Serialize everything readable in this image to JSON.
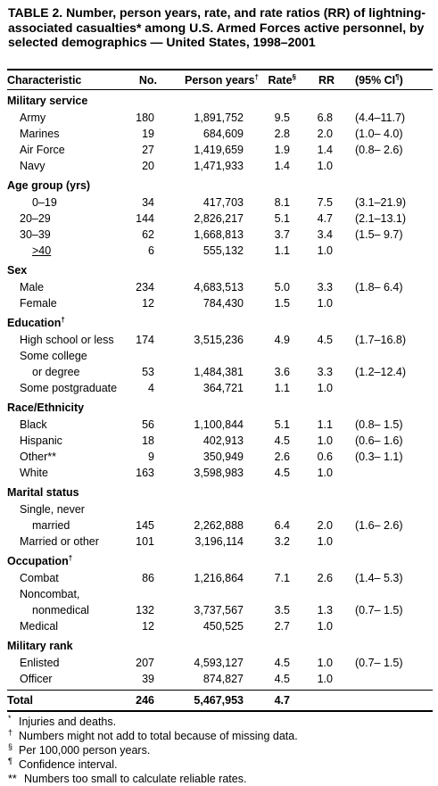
{
  "title": "TABLE 2. Number, person years, rate, and rate ratios (RR) of lightning-associated casualties* among U.S. Armed Forces active personnel, by selected demographics — United States, 1998–2001",
  "header": {
    "characteristic": "Characteristic",
    "no": "No.",
    "person_years": "Person years",
    "person_years_mark": "†",
    "rate": "Rate",
    "rate_mark": "§",
    "rr": "RR",
    "ci": "(95% CI",
    "ci_mark": "¶",
    "ci_close": ")"
  },
  "rows": [
    {
      "type": "section",
      "label": "Military service"
    },
    {
      "type": "item",
      "label": "Army",
      "no": "180",
      "py": "1,891,752",
      "rate": "9.5",
      "rr": "6.8",
      "ci": "(4.4–11.7)"
    },
    {
      "type": "item",
      "label": "Marines",
      "no": "19",
      "py": "684,609",
      "rate": "2.8",
      "rr": "2.0",
      "ci": "(1.0– 4.0)"
    },
    {
      "type": "item",
      "label": "Air Force",
      "no": "27",
      "py": "1,419,659",
      "rate": "1.9",
      "rr": "1.4",
      "ci": "(0.8– 2.6)"
    },
    {
      "type": "item",
      "label": "Navy",
      "no": "20",
      "py": "1,471,933",
      "rate": "1.4",
      "rr": "1.0",
      "ci": ""
    },
    {
      "type": "section",
      "label": "Age group (yrs)"
    },
    {
      "type": "item",
      "level": 2,
      "label": "0–19",
      "no": "34",
      "py": "417,703",
      "rate": "8.1",
      "rr": "7.5",
      "ci": "(3.1–21.9)"
    },
    {
      "type": "item",
      "label": "20–29",
      "no": "144",
      "py": "2,826,217",
      "rate": "5.1",
      "rr": "4.7",
      "ci": "(2.1–13.1)"
    },
    {
      "type": "item",
      "label": "30–39",
      "no": "62",
      "py": "1,668,813",
      "rate": "3.7",
      "rr": "3.4",
      "ci": "(1.5– 9.7)"
    },
    {
      "type": "item",
      "level": 2,
      "label": ">40",
      "no": "6",
      "py": "555,132",
      "rate": "1.1",
      "rr": "1.0",
      "ci": "",
      "underline": true
    },
    {
      "type": "section",
      "label": "Sex"
    },
    {
      "type": "item",
      "label": "Male",
      "no": "234",
      "py": "4,683,513",
      "rate": "5.0",
      "rr": "3.3",
      "ci": "(1.8– 6.4)"
    },
    {
      "type": "item",
      "label": "Female",
      "no": "12",
      "py": "784,430",
      "rate": "1.5",
      "rr": "1.0",
      "ci": ""
    },
    {
      "type": "section",
      "label": "Education",
      "mark": "†"
    },
    {
      "type": "item",
      "label": "High school or less",
      "no": "174",
      "py": "3,515,236",
      "rate": "4.9",
      "rr": "4.5",
      "ci": "(1.7–16.8)"
    },
    {
      "type": "item",
      "label": "Some college",
      "no": "",
      "py": "",
      "rate": "",
      "rr": "",
      "ci": ""
    },
    {
      "type": "item",
      "level": 2,
      "label": "or degree",
      "no": "53",
      "py": "1,484,381",
      "rate": "3.6",
      "rr": "3.3",
      "ci": "(1.2–12.4)"
    },
    {
      "type": "item",
      "label": "Some postgraduate",
      "no": "4",
      "py": "364,721",
      "rate": "1.1",
      "rr": "1.0",
      "ci": ""
    },
    {
      "type": "section",
      "label": "Race/Ethnicity"
    },
    {
      "type": "item",
      "label": "Black",
      "no": "56",
      "py": "1,100,844",
      "rate": "5.1",
      "rr": "1.1",
      "ci": "(0.8– 1.5)"
    },
    {
      "type": "item",
      "label": "Hispanic",
      "no": "18",
      "py": "402,913",
      "rate": "4.5",
      "rr": "1.0",
      "ci": "(0.6– 1.6)"
    },
    {
      "type": "item",
      "label": "Other**",
      "no": "9",
      "py": "350,949",
      "rate": "2.6",
      "rr": "0.6",
      "ci": "(0.3– 1.1)"
    },
    {
      "type": "item",
      "label": "White",
      "no": "163",
      "py": "3,598,983",
      "rate": "4.5",
      "rr": "1.0",
      "ci": ""
    },
    {
      "type": "section",
      "label": "Marital status"
    },
    {
      "type": "item",
      "label": "Single, never",
      "no": "",
      "py": "",
      "rate": "",
      "rr": "",
      "ci": ""
    },
    {
      "type": "item",
      "level": 2,
      "label": "married",
      "no": "145",
      "py": "2,262,888",
      "rate": "6.4",
      "rr": "2.0",
      "ci": "(1.6– 2.6)"
    },
    {
      "type": "item",
      "label": "Married or other",
      "no": "101",
      "py": "3,196,114",
      "rate": "3.2",
      "rr": "1.0",
      "ci": ""
    },
    {
      "type": "section",
      "label": "Occupation",
      "mark": "†"
    },
    {
      "type": "item",
      "label": "Combat",
      "no": "86",
      "py": "1,216,864",
      "rate": "7.1",
      "rr": "2.6",
      "ci": "(1.4– 5.3)"
    },
    {
      "type": "item",
      "label": "Noncombat,",
      "no": "",
      "py": "",
      "rate": "",
      "rr": "",
      "ci": ""
    },
    {
      "type": "item",
      "level": 2,
      "label": "nonmedical",
      "no": "132",
      "py": "3,737,567",
      "rate": "3.5",
      "rr": "1.3",
      "ci": "(0.7– 1.5)"
    },
    {
      "type": "item",
      "label": "Medical",
      "no": "12",
      "py": "450,525",
      "rate": "2.7",
      "rr": "1.0",
      "ci": ""
    },
    {
      "type": "section",
      "label": "Military rank"
    },
    {
      "type": "item",
      "label": "Enlisted",
      "no": "207",
      "py": "4,593,127",
      "rate": "4.5",
      "rr": "1.0",
      "ci": "(0.7– 1.5)"
    },
    {
      "type": "item",
      "label": "Officer",
      "no": "39",
      "py": "874,827",
      "rate": "4.5",
      "rr": "1.0",
      "ci": ""
    }
  ],
  "total": {
    "label": "Total",
    "no": "246",
    "py": "5,467,953",
    "rate": "4.7",
    "rr": "",
    "ci": ""
  },
  "footnotes": [
    {
      "sym": "*",
      "text": "Injuries and deaths."
    },
    {
      "sym": "†",
      "text": "Numbers might not add to total because of missing data."
    },
    {
      "sym": "§",
      "text": "Per 100,000 person years."
    },
    {
      "sym": "¶",
      "text": "Confidence interval."
    },
    {
      "sym": "**",
      "text": "Numbers too small to calculate reliable rates.",
      "wide": true
    }
  ]
}
